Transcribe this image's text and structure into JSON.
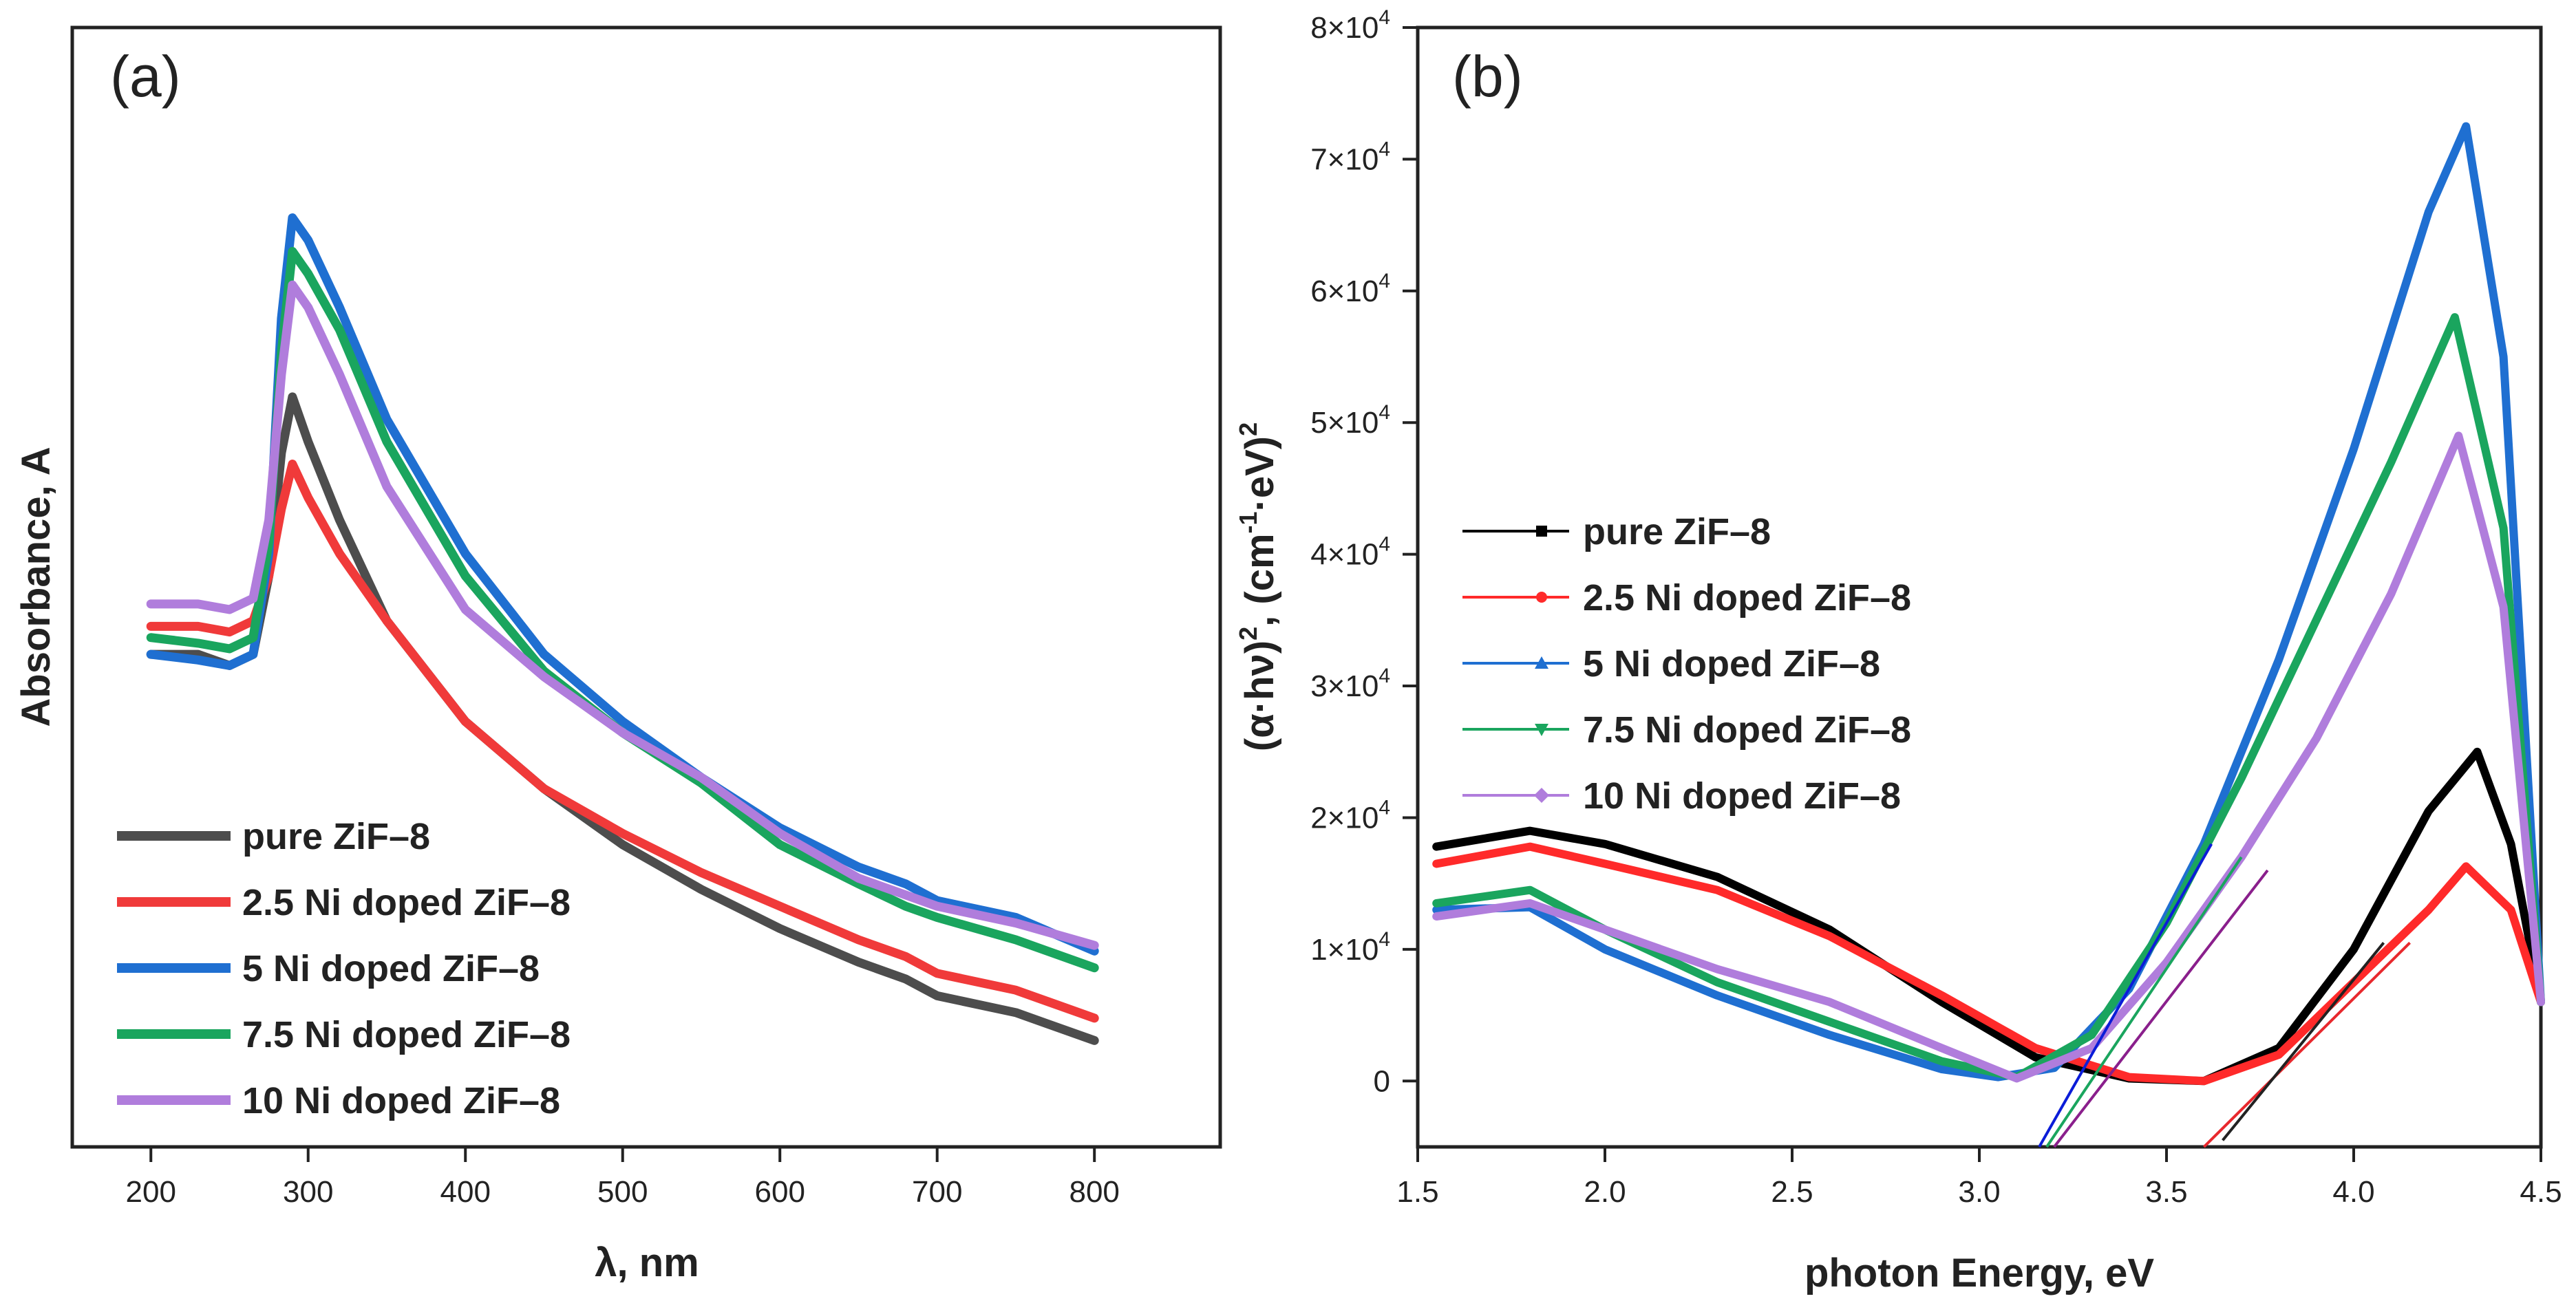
{
  "chart_data": [
    {
      "type": "line",
      "panel_label": "(a)",
      "xlabel": "λ, nm",
      "ylabel": "Absorbance, A",
      "xlim": [
        150,
        880
      ],
      "ylim": [
        0.05,
        1.05
      ],
      "xticks": [
        200,
        300,
        400,
        500,
        600,
        700,
        800
      ],
      "legend_position": "bottom-left",
      "x": [
        200,
        230,
        250,
        265,
        275,
        283,
        290,
        300,
        320,
        350,
        400,
        450,
        500,
        550,
        600,
        650,
        680,
        700,
        750,
        800
      ],
      "series": [
        {
          "name": "pure ZiF–8",
          "color": "#4d4d4d",
          "y": [
            0.49,
            0.49,
            0.48,
            0.49,
            0.56,
            0.67,
            0.72,
            0.68,
            0.61,
            0.52,
            0.43,
            0.37,
            0.32,
            0.28,
            0.245,
            0.215,
            0.2,
            0.185,
            0.17,
            0.145
          ]
        },
        {
          "name": "2.5 Ni doped ZiF–8",
          "color": "#f03a3a",
          "y": [
            0.515,
            0.515,
            0.51,
            0.52,
            0.56,
            0.62,
            0.66,
            0.63,
            0.58,
            0.52,
            0.43,
            0.37,
            0.33,
            0.295,
            0.265,
            0.235,
            0.22,
            0.205,
            0.19,
            0.165
          ]
        },
        {
          "name": "5 Ni doped ZiF–8",
          "color": "#1f6fd1",
          "y": [
            0.49,
            0.485,
            0.48,
            0.49,
            0.58,
            0.79,
            0.88,
            0.86,
            0.8,
            0.7,
            0.58,
            0.49,
            0.43,
            0.38,
            0.335,
            0.3,
            0.285,
            0.27,
            0.255,
            0.225
          ]
        },
        {
          "name": "7.5 Ni doped ZiF–8",
          "color": "#1aa55e",
          "y": [
            0.505,
            0.5,
            0.495,
            0.505,
            0.59,
            0.76,
            0.85,
            0.83,
            0.78,
            0.68,
            0.56,
            0.475,
            0.42,
            0.375,
            0.32,
            0.285,
            0.265,
            0.255,
            0.235,
            0.21
          ]
        },
        {
          "name": "10 Ni doped ZiF–8",
          "color": "#b07ddc",
          "y": [
            0.535,
            0.535,
            0.53,
            0.54,
            0.61,
            0.74,
            0.82,
            0.8,
            0.74,
            0.64,
            0.53,
            0.47,
            0.42,
            0.38,
            0.33,
            0.29,
            0.275,
            0.265,
            0.25,
            0.23
          ]
        }
      ]
    },
    {
      "type": "line",
      "panel_label": "(b)",
      "xlabel": "photon Energy, eV",
      "ylabel_parts": [
        "(α·hν)",
        "2",
        ", (cm",
        "-1",
        "·eV)",
        "2"
      ],
      "xlim": [
        1.5,
        4.5
      ],
      "ylim": [
        -5000,
        80000
      ],
      "xticks": [
        "1.5",
        "2.0",
        "2.5",
        "3.0",
        "3.5",
        "4.0",
        "4.5"
      ],
      "yticks": [
        {
          "value": 0,
          "label": "0"
        },
        {
          "value": 10000,
          "label": "1×10",
          "exp": "4"
        },
        {
          "value": 20000,
          "label": "2×10",
          "exp": "4"
        },
        {
          "value": 30000,
          "label": "3×10",
          "exp": "4"
        },
        {
          "value": 40000,
          "label": "4×10",
          "exp": "4"
        },
        {
          "value": 50000,
          "label": "5×10",
          "exp": "4"
        },
        {
          "value": 60000,
          "label": "6×10",
          "exp": "4"
        },
        {
          "value": 70000,
          "label": "7×10",
          "exp": "4"
        },
        {
          "value": 80000,
          "label": "8×10",
          "exp": "4"
        }
      ],
      "legend_position": "middle-left",
      "series": [
        {
          "name": "pure ZiF–8",
          "color": "#000000",
          "marker": "square",
          "x": [
            1.55,
            1.8,
            2.0,
            2.3,
            2.6,
            2.9,
            3.15,
            3.4,
            3.6,
            3.8,
            4.0,
            4.2,
            4.33,
            4.42,
            4.5
          ],
          "y": [
            17800,
            19000,
            18000,
            15500,
            11500,
            6000,
            1800,
            200,
            0,
            2500,
            10000,
            20500,
            25000,
            18000,
            6000
          ]
        },
        {
          "name": "2.5 Ni doped ZiF–8",
          "color": "#ff2a2a",
          "marker": "circle",
          "x": [
            1.55,
            1.8,
            2.0,
            2.3,
            2.6,
            2.9,
            3.15,
            3.4,
            3.6,
            3.8,
            4.0,
            4.2,
            4.3,
            4.42,
            4.5
          ],
          "y": [
            16500,
            17800,
            16500,
            14500,
            11000,
            6500,
            2500,
            300,
            0,
            2000,
            7500,
            13000,
            16300,
            13000,
            6000
          ]
        },
        {
          "name": "5 Ni doped ZiF–8",
          "color": "#1f6fd1",
          "marker": "triangle-up",
          "x": [
            1.55,
            1.8,
            2.0,
            2.3,
            2.6,
            2.9,
            3.05,
            3.2,
            3.4,
            3.6,
            3.8,
            4.0,
            4.2,
            4.3,
            4.4,
            4.5
          ],
          "y": [
            13000,
            13200,
            10000,
            6500,
            3500,
            900,
            300,
            1000,
            7000,
            18000,
            32000,
            48000,
            66000,
            72500,
            55000,
            6000
          ]
        },
        {
          "name": "7.5 Ni doped ZiF–8",
          "color": "#1aa55e",
          "marker": "triangle-down",
          "x": [
            1.55,
            1.8,
            2.0,
            2.3,
            2.6,
            2.9,
            3.1,
            3.3,
            3.5,
            3.7,
            3.9,
            4.1,
            4.27,
            4.4,
            4.5
          ],
          "y": [
            13500,
            14500,
            11500,
            7500,
            4500,
            1500,
            300,
            3500,
            12000,
            23000,
            35000,
            47000,
            58000,
            42000,
            6000
          ]
        },
        {
          "name": "10 Ni doped ZiF–8",
          "color": "#b07ddc",
          "marker": "diamond",
          "x": [
            1.55,
            1.8,
            2.0,
            2.3,
            2.6,
            2.9,
            3.1,
            3.3,
            3.5,
            3.7,
            3.9,
            4.1,
            4.28,
            4.4,
            4.5
          ],
          "y": [
            12500,
            13500,
            11500,
            8500,
            6000,
            2500,
            200,
            2500,
            9000,
            17000,
            26000,
            37000,
            49000,
            36000,
            6000
          ]
        }
      ],
      "tangent_lines": [
        {
          "color": "#0b1cd8",
          "x": [
            3.16,
            3.62
          ],
          "y": [
            -5000,
            18000
          ]
        },
        {
          "color": "#1aa55e",
          "x": [
            3.18,
            3.7
          ],
          "y": [
            -5000,
            17000
          ]
        },
        {
          "color": "#8a1f8c",
          "x": [
            3.2,
            3.77
          ],
          "y": [
            -5000,
            16000
          ]
        },
        {
          "color": "#e8282d",
          "x": [
            3.6,
            4.15
          ],
          "y": [
            -5000,
            10500
          ]
        },
        {
          "color": "#222222",
          "x": [
            3.65,
            4.08
          ],
          "y": [
            -4500,
            10500
          ]
        }
      ]
    }
  ]
}
